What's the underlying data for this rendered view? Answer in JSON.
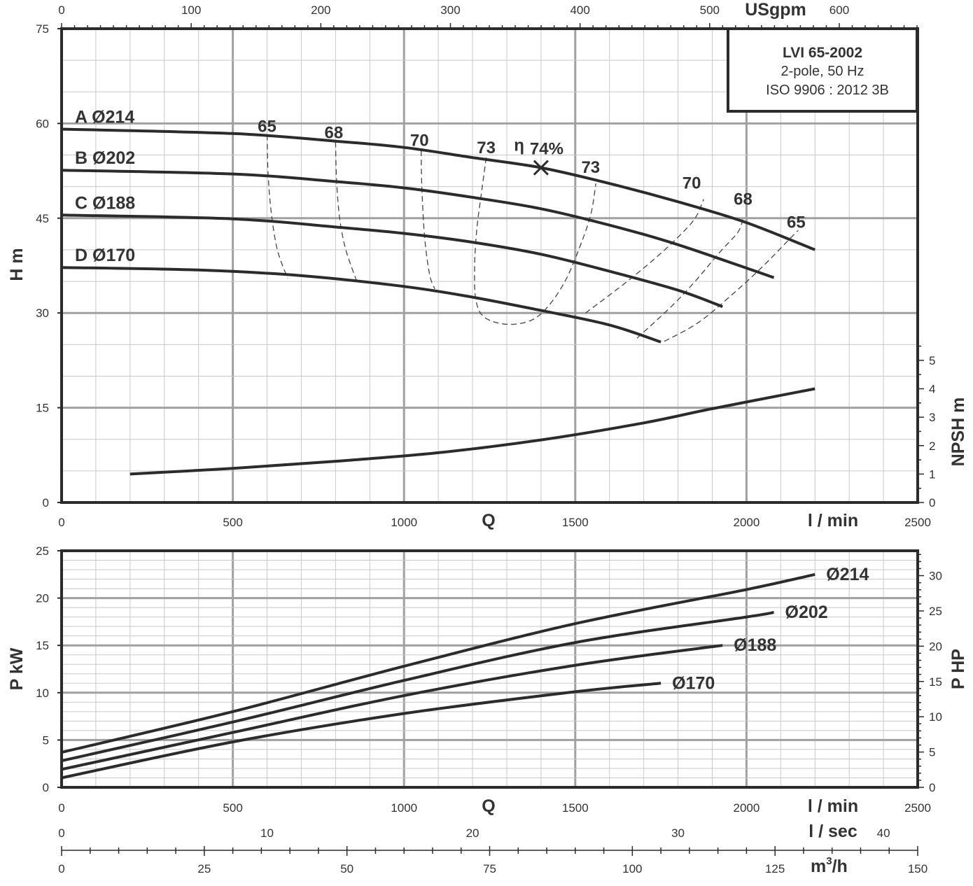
{
  "info_box": {
    "model": "LVI 65-2002",
    "poles": "2-pole, 50 Hz",
    "standard": "ISO 9906 : 2012 3B"
  },
  "colors": {
    "curve": "#2b2b2b",
    "frame": "#2b2b2b",
    "grid_major": "#a0a0a0",
    "grid_minor": "#c8c8c8",
    "text": "#333333"
  },
  "chart_data": [
    {
      "type": "line",
      "name": "head",
      "xlabel": "l / min",
      "xlabel_q": "Q",
      "ylabel": "H m",
      "xlim": [
        0,
        2500
      ],
      "ylim": [
        0,
        75
      ],
      "x_ticks": [
        0,
        500,
        1000,
        1500,
        2000,
        2500
      ],
      "y_ticks": [
        0,
        15,
        30,
        45,
        60,
        75
      ],
      "top_axis": {
        "label": "USgpm",
        "ticks": [
          0,
          100,
          200,
          300,
          400,
          500,
          600
        ],
        "l_per_min_per_unit": 3.785
      },
      "right_axis": {
        "label": "NPSH m",
        "ticks": [
          0,
          1,
          2,
          3,
          4,
          5
        ],
        "m_per_unit": 4.5
      },
      "series": [
        {
          "name": "A Ø214",
          "points": [
            [
              0,
              59.1
            ],
            [
              500,
              58.4
            ],
            [
              800,
              57.2
            ],
            [
              1000,
              56.2
            ],
            [
              1200,
              54.6
            ],
            [
              1400,
              53.0
            ],
            [
              1600,
              50.5
            ],
            [
              1800,
              47.6
            ],
            [
              2000,
              44.3
            ],
            [
              2200,
              40.0
            ]
          ]
        },
        {
          "name": "B Ø202",
          "points": [
            [
              0,
              52.6
            ],
            [
              500,
              52.0
            ],
            [
              800,
              50.8
            ],
            [
              1000,
              49.8
            ],
            [
              1200,
              48.3
            ],
            [
              1400,
              46.5
            ],
            [
              1600,
              43.9
            ],
            [
              1800,
              40.8
            ],
            [
              2080,
              35.6
            ]
          ]
        },
        {
          "name": "C Ø188",
          "points": [
            [
              0,
              45.5
            ],
            [
              500,
              44.9
            ],
            [
              800,
              43.6
            ],
            [
              1000,
              42.6
            ],
            [
              1200,
              41.2
            ],
            [
              1400,
              39.3
            ],
            [
              1600,
              36.6
            ],
            [
              1800,
              33.6
            ],
            [
              1930,
              31.0
            ]
          ]
        },
        {
          "name": "D Ø170",
          "points": [
            [
              0,
              37.2
            ],
            [
              400,
              36.8
            ],
            [
              700,
              35.9
            ],
            [
              1000,
              34.2
            ],
            [
              1200,
              32.5
            ],
            [
              1400,
              30.4
            ],
            [
              1600,
              28.1
            ],
            [
              1750,
              25.4
            ]
          ]
        }
      ],
      "npsh": {
        "points": [
          [
            200,
            1.0
          ],
          [
            500,
            1.2
          ],
          [
            800,
            1.45
          ],
          [
            1100,
            1.75
          ],
          [
            1400,
            2.2
          ],
          [
            1700,
            2.8
          ],
          [
            1900,
            3.3
          ],
          [
            2200,
            4.0
          ]
        ]
      },
      "efficiency": {
        "symbol": "η",
        "bep": {
          "label": "74%",
          "q": 1400,
          "h": 53.0
        },
        "labels": [
          {
            "text": "65",
            "q": 600,
            "h": 58.0
          },
          {
            "text": "68",
            "q": 795,
            "h": 57.0
          },
          {
            "text": "70",
            "q": 1045,
            "h": 55.8
          },
          {
            "text": "73",
            "q": 1240,
            "h": 54.6
          },
          {
            "text": "73",
            "q": 1545,
            "h": 51.5
          },
          {
            "text": "70",
            "q": 1840,
            "h": 49.0
          },
          {
            "text": "68",
            "q": 1990,
            "h": 46.5
          },
          {
            "text": "65",
            "q": 2145,
            "h": 42.8
          }
        ],
        "contours": [
          {
            "value": 65,
            "points": [
              [
                600,
                58.2
              ],
              [
                603,
                52.0
              ],
              [
                612,
                46.0
              ],
              [
                630,
                40.0
              ],
              [
                660,
                35.5
              ]
            ]
          },
          {
            "value": 68,
            "points": [
              [
                800,
                57.1
              ],
              [
                803,
                51.0
              ],
              [
                812,
                45.0
              ],
              [
                830,
                40.0
              ],
              [
                862,
                35.0
              ]
            ]
          },
          {
            "value": 70,
            "points": [
              [
                1050,
                55.7
              ],
              [
                1052,
                50.0
              ],
              [
                1060,
                42.0
              ],
              [
                1075,
                36.0
              ],
              [
                1090,
                33.8
              ]
            ]
          },
          {
            "value": 73,
            "points": [
              [
                1240,
                54.6
              ],
              [
                1226,
                49.0
              ],
              [
                1212,
                43.0
              ],
              [
                1206,
                37.0
              ],
              [
                1210,
                32.0
              ],
              [
                1235,
                29.3
              ],
              [
                1300,
                28.2
              ],
              [
                1370,
                28.8
              ],
              [
                1420,
                31.0
              ],
              [
                1470,
                35.0
              ],
              [
                1510,
                40.0
              ],
              [
                1545,
                45.5
              ],
              [
                1560,
                50.5
              ]
            ]
          },
          {
            "value": 70,
            "points": [
              [
                1530,
                30.0
              ],
              [
                1640,
                34.5
              ],
              [
                1730,
                38.5
              ],
              [
                1800,
                42.0
              ],
              [
                1850,
                45.0
              ],
              [
                1875,
                48.0
              ]
            ]
          },
          {
            "value": 68,
            "points": [
              [
                1680,
                26.0
              ],
              [
                1780,
                31.0
              ],
              [
                1850,
                35.0
              ],
              [
                1920,
                39.5
              ],
              [
                1975,
                42.8
              ],
              [
                1990,
                45.0
              ]
            ]
          },
          {
            "value": 65,
            "points": [
              [
                1760,
                25.5
              ],
              [
                1860,
                28.5
              ],
              [
                1960,
                33.0
              ],
              [
                2050,
                37.5
              ],
              [
                2140,
                42.5
              ],
              [
                2150,
                43.0
              ]
            ]
          }
        ]
      }
    },
    {
      "type": "line",
      "name": "power",
      "xlabel": "l / min",
      "xlabel_q": "Q",
      "ylabel": "P kW",
      "xlim": [
        0,
        2500
      ],
      "ylim": [
        0,
        25
      ],
      "x_ticks": [
        0,
        500,
        1000,
        1500,
        2000,
        2500
      ],
      "y_ticks": [
        0,
        5,
        10,
        15,
        20,
        25
      ],
      "right_axis": {
        "label": "P HP",
        "ticks": [
          0,
          5,
          10,
          15,
          20,
          25,
          30
        ],
        "kw_per_unit": 0.7457
      },
      "series": [
        {
          "name": "Ø214",
          "points": [
            [
              0,
              3.7
            ],
            [
              500,
              8.0
            ],
            [
              1000,
              12.8
            ],
            [
              1500,
              17.3
            ],
            [
              2000,
              20.9
            ],
            [
              2200,
              22.5
            ]
          ]
        },
        {
          "name": "Ø202",
          "points": [
            [
              0,
              2.8
            ],
            [
              500,
              6.9
            ],
            [
              1000,
              11.3
            ],
            [
              1500,
              15.3
            ],
            [
              2000,
              18.0
            ],
            [
              2080,
              18.5
            ]
          ]
        },
        {
          "name": "Ø188",
          "points": [
            [
              0,
              1.9
            ],
            [
              500,
              5.8
            ],
            [
              1000,
              9.7
            ],
            [
              1500,
              12.9
            ],
            [
              1930,
              15.0
            ]
          ]
        },
        {
          "name": "Ø170",
          "points": [
            [
              0,
              1.0
            ],
            [
              500,
              4.8
            ],
            [
              1000,
              7.8
            ],
            [
              1500,
              10.1
            ],
            [
              1750,
              11.0
            ]
          ]
        }
      ]
    }
  ],
  "extra_axes": [
    {
      "label": "l / sec",
      "ticks": [
        0,
        10,
        20,
        30,
        40
      ],
      "l_per_min_per_unit": 60
    },
    {
      "label": "m3/h",
      "label_main": "m",
      "label_sup": "3",
      "label_tail": "/h",
      "ticks": [
        0,
        25,
        50,
        75,
        100,
        125,
        150
      ],
      "l_per_min_per_unit": 16.6667
    }
  ]
}
